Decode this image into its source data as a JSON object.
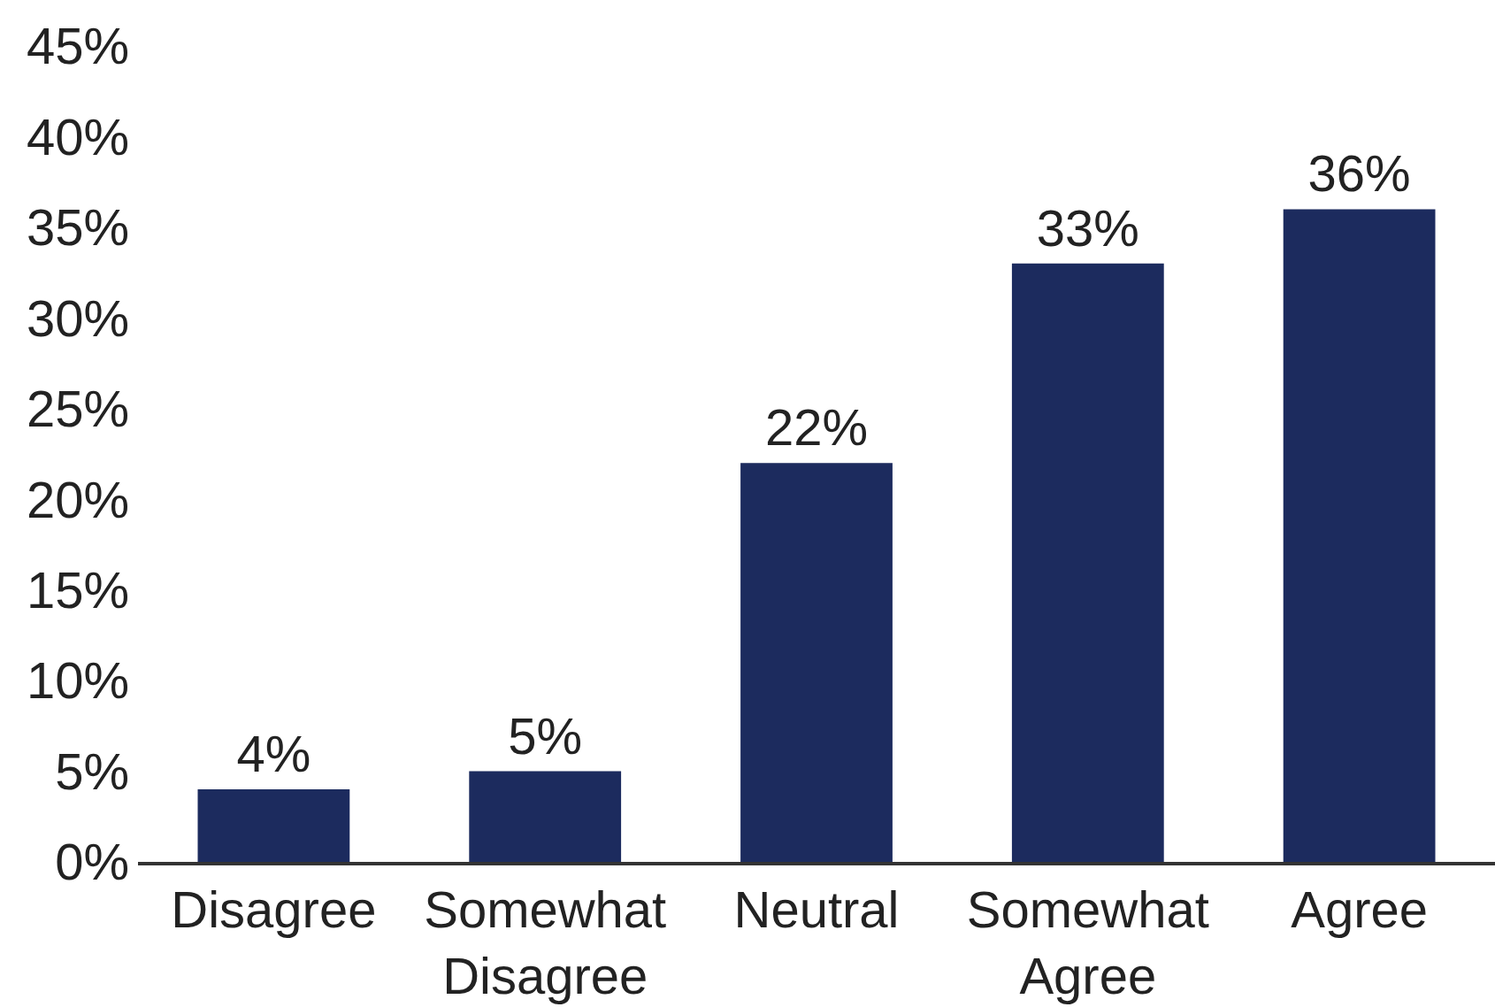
{
  "chart_data": {
    "type": "bar",
    "categories": [
      "Disagree",
      "Somewhat\nDisagree",
      "Neutral",
      "Somewhat\nAgree",
      "Agree"
    ],
    "values": [
      4,
      5,
      22,
      33,
      36
    ],
    "value_labels": [
      "4%",
      "5%",
      "22%",
      "33%",
      "36%"
    ],
    "color": "#1c2b5e",
    "ylim": [
      0,
      45
    ],
    "yticks": [
      {
        "value": 0,
        "label": "0%"
      },
      {
        "value": 5,
        "label": "5%"
      },
      {
        "value": 10,
        "label": "10%"
      },
      {
        "value": 15,
        "label": "15%"
      },
      {
        "value": 20,
        "label": "20%"
      },
      {
        "value": 25,
        "label": "25%"
      },
      {
        "value": 30,
        "label": "30%"
      },
      {
        "value": 35,
        "label": "35%"
      },
      {
        "value": 40,
        "label": "40%"
      },
      {
        "value": 45,
        "label": "45%"
      }
    ]
  }
}
